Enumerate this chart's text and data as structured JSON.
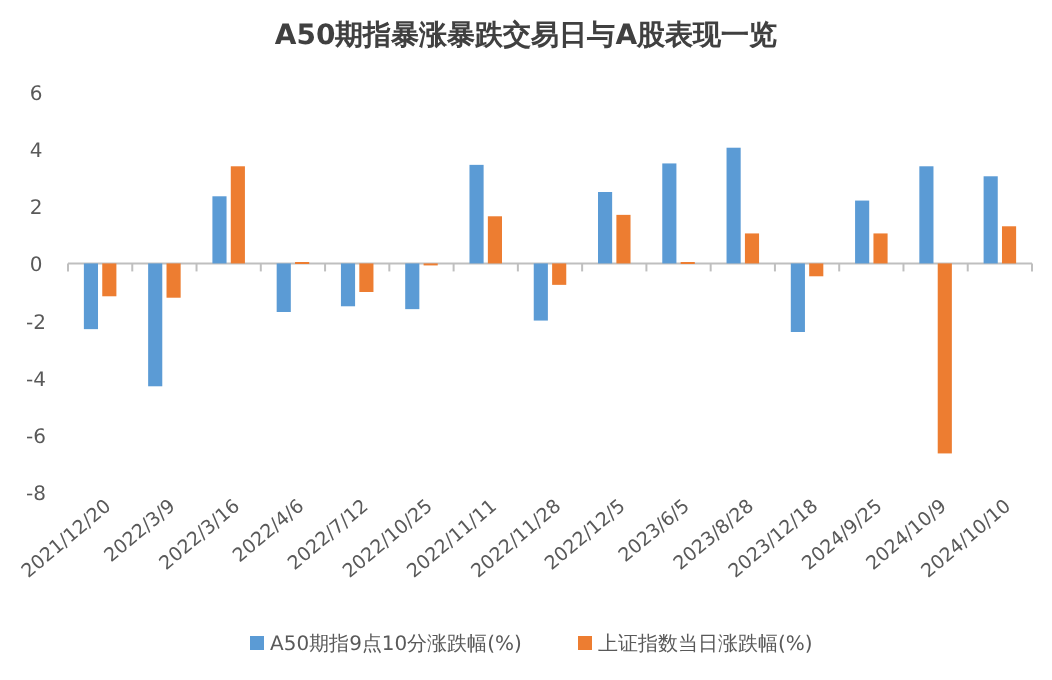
{
  "chart_data": {
    "type": "bar",
    "title": "A50期指暴涨暴跌交易日与A股表现一览",
    "categories": [
      "2021/12/20",
      "2022/3/9",
      "2022/3/16",
      "2022/4/6",
      "2022/7/12",
      "2022/10/25",
      "2022/11/11",
      "2022/11/28",
      "2022/12/5",
      "2023/6/5",
      "2023/8/28",
      "2023/12/18",
      "2024/9/25",
      "2024/10/9",
      "2024/10/10"
    ],
    "series": [
      {
        "name": "A50期指9点10分涨跌幅(%)",
        "color": "#5b9bd5",
        "values": [
          -2.3,
          -4.3,
          2.35,
          -1.7,
          -1.5,
          -1.6,
          3.45,
          -2.0,
          2.5,
          3.5,
          4.05,
          -2.4,
          2.2,
          3.4,
          3.05
        ]
      },
      {
        "name": "上证指数当日涨跌幅(%)",
        "color": "#ed7d31",
        "values": [
          -1.15,
          -1.2,
          3.4,
          0.05,
          -1.0,
          0,
          1.65,
          -0.75,
          1.7,
          0.05,
          1.05,
          -0.45,
          1.05,
          -6.65,
          1.3
        ]
      }
    ],
    "ylim": [
      -8,
      6
    ],
    "yticks": [
      -8,
      -6,
      -4,
      -2,
      0,
      2,
      4,
      6
    ],
    "legend": "bottom"
  }
}
